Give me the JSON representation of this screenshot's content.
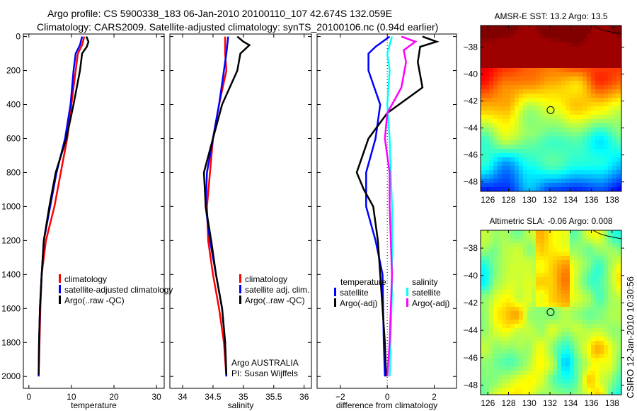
{
  "title_line1": "Argo profile: CS 5900338_183 06-Jan-2010 20100110_107 42.674S 132.059E",
  "title_line2": "Climatology: CARS2009. Satellite-adjusted climatology: synTS_20100106.nc (0.94d earlier)",
  "credit_vertical": "CSIRO 12-Jan-2010 10:30:56",
  "chart_data": [
    {
      "type": "line",
      "name": "temperature-profile",
      "xlabel": "temperature",
      "ylabel": "",
      "xlim": [
        -1.3,
        31.8
      ],
      "ylim": [
        2070,
        -15
      ],
      "xticks": [
        0,
        10,
        20,
        30
      ],
      "yticks": [
        0,
        200,
        400,
        600,
        800,
        1000,
        1200,
        1400,
        1600,
        1800,
        2000
      ],
      "legend": [
        "climatology",
        "satellite-adjusted climatology",
        "Argo(..raw -QC)"
      ],
      "legend_placement": "bottom-left",
      "series": [
        {
          "name": "climatology",
          "color": "#ff0000",
          "depth": [
            0,
            50,
            100,
            200,
            400,
            600,
            800,
            1000,
            1200,
            1400,
            1600,
            1800,
            2000
          ],
          "values": [
            13,
            12.5,
            11.5,
            11,
            10,
            9,
            7.5,
            6,
            4,
            3,
            2.7,
            2.5,
            2.3
          ]
        },
        {
          "name": "satellite-adjusted climatology",
          "color": "#0000ff",
          "depth": [
            0,
            50,
            100,
            200,
            400,
            600,
            800,
            1000,
            1200,
            1400,
            1600,
            1800,
            2000
          ],
          "values": [
            12.5,
            12,
            11,
            10.5,
            9.8,
            8.5,
            6.5,
            5,
            3.5,
            3,
            2.6,
            2.4,
            2.3
          ]
        },
        {
          "name": "Argo(..raw -QC)",
          "color": "#000000",
          "depth": [
            0,
            30,
            60,
            100,
            200,
            400,
            600,
            800,
            1000,
            1200,
            1400,
            1600,
            1800,
            1990
          ],
          "values": [
            13.5,
            14,
            13.6,
            12.5,
            12,
            10.5,
            8.8,
            6.3,
            4.8,
            3.5,
            3,
            2.6,
            2.4,
            2.3
          ]
        }
      ]
    },
    {
      "type": "line",
      "name": "salinity-profile",
      "xlabel": "salinity",
      "xlim": [
        33.79,
        36.12
      ],
      "ylim": [
        2070,
        -15
      ],
      "xticks": [
        34,
        34.5,
        35,
        35.5,
        36
      ],
      "legend": [
        "climatology",
        "satellite adj. clim.",
        "Argo(..raw -QC)"
      ],
      "legend_placement": "bottom-right",
      "annotation": [
        "Argo AUSTRALIA",
        "PI: Susan Wijffels"
      ],
      "series": [
        {
          "name": "climatology",
          "color": "#ff0000",
          "depth": [
            0,
            100,
            200,
            400,
            600,
            800,
            1000,
            1200,
            1400,
            1600,
            1800,
            2000
          ],
          "values": [
            34.7,
            34.7,
            34.72,
            34.6,
            34.5,
            34.45,
            34.4,
            34.42,
            34.5,
            34.6,
            34.68,
            34.72
          ]
        },
        {
          "name": "satellite adj. clim.",
          "color": "#0000ff",
          "depth": [
            0,
            100,
            200,
            400,
            600,
            800,
            1000,
            1200,
            1400,
            1600,
            1800,
            2000
          ],
          "values": [
            34.75,
            34.72,
            34.68,
            34.6,
            34.5,
            34.4,
            34.38,
            34.45,
            34.55,
            34.65,
            34.7,
            34.72
          ]
        },
        {
          "name": "Argo(..raw -QC)",
          "color": "#000000",
          "depth": [
            0,
            30,
            50,
            100,
            200,
            400,
            600,
            800,
            1000,
            1200,
            1400,
            1600,
            1800,
            1990
          ],
          "values": [
            34.9,
            35.0,
            35.1,
            34.95,
            34.9,
            34.65,
            34.5,
            34.35,
            34.38,
            34.47,
            34.55,
            34.65,
            34.7,
            34.72
          ]
        }
      ]
    },
    {
      "type": "line",
      "name": "difference-profile",
      "xlabel": "difference from climatology",
      "xlim": [
        -2.99,
        2.95
      ],
      "ylim": [
        2070,
        -15
      ],
      "xticks": [
        -2,
        0,
        2
      ],
      "legend_headers": [
        "temperature",
        "salinity"
      ],
      "legend": [
        "satellite",
        "Argo(-adj)",
        "satellite",
        "Argo(-adj)"
      ],
      "legend_placement": "bottom",
      "series": [
        {
          "name": "temperature satellite",
          "color": "#0000ff",
          "depth": [
            0,
            60,
            100,
            200,
            400,
            600,
            800,
            1000,
            1200,
            1400,
            1800,
            2000
          ],
          "values": [
            0.1,
            -0.5,
            -0.8,
            -0.8,
            -0.3,
            -0.5,
            -0.9,
            -0.9,
            -0.5,
            -0.2,
            -0.15,
            -0.1
          ]
        },
        {
          "name": "temperature Argo(-adj)",
          "color": "#000000",
          "depth": [
            0,
            30,
            60,
            150,
            300,
            450,
            600,
            800,
            900,
            1000,
            1200,
            1400,
            1800,
            2000
          ],
          "values": [
            1.5,
            2.1,
            1.4,
            1.3,
            1.5,
            0,
            -0.8,
            -1.3,
            -1.0,
            -0.6,
            -0.4,
            -0.3,
            -0.1,
            -0.05
          ]
        },
        {
          "name": "salinity satellite",
          "color": "#00ffff",
          "depth": [
            0,
            100,
            200,
            400,
            600,
            1000,
            1500,
            2000
          ],
          "values": [
            0.2,
            0,
            0.1,
            0,
            0.1,
            0.2,
            0.2,
            0.1
          ]
        },
        {
          "name": "salinity Argo(-adj)",
          "color": "#ff00ff",
          "depth": [
            0,
            30,
            80,
            150,
            300,
            450,
            600,
            800,
            1000,
            1400,
            1800,
            2000
          ],
          "values": [
            0.6,
            1.2,
            0.7,
            0.8,
            0.6,
            0,
            -0.1,
            0.1,
            0.1,
            0.2,
            0.1,
            0
          ]
        }
      ]
    },
    {
      "type": "heatmap",
      "name": "sst-map",
      "title": "AMSR-E SST: 13.2  Argo: 13.5",
      "xlim": [
        125.3,
        138.9
      ],
      "ylim": [
        -48.7,
        -36.4
      ],
      "xticks": [
        126,
        128,
        130,
        132,
        134,
        136,
        138
      ],
      "yticks": [
        -38,
        -40,
        -42,
        -44,
        -46,
        -48
      ],
      "marker": {
        "lon": 132.059,
        "lat": -42.674
      }
    },
    {
      "type": "heatmap",
      "name": "sla-map",
      "title": "Altimetric SLA: -0.06  Argo: 0.008",
      "xlim": [
        125.3,
        138.9
      ],
      "ylim": [
        -48.7,
        -36.7
      ],
      "xticks": [
        126,
        128,
        130,
        132,
        134,
        136,
        138
      ],
      "yticks": [
        -38,
        -40,
        -42,
        -44,
        -46,
        -48
      ],
      "marker": {
        "lon": 132.059,
        "lat": -42.674
      }
    }
  ]
}
